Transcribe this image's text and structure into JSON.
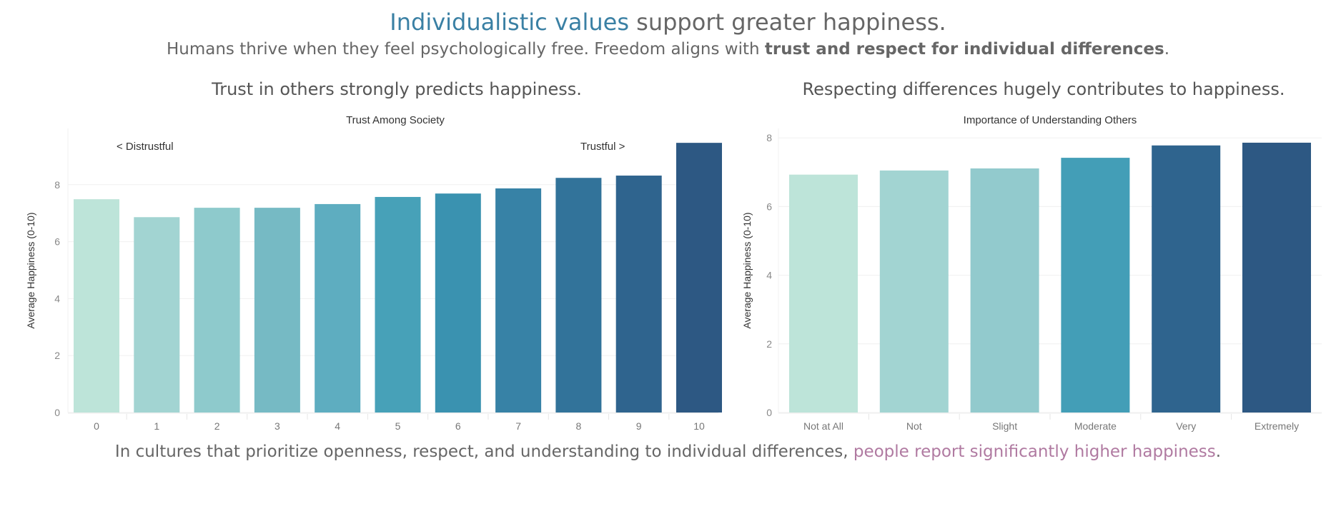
{
  "header": {
    "title_highlight": "Individualistic values",
    "title_rest": " support greater happiness.",
    "subtitle_pre": "Humans thrive when they feel psychologically free. Freedom aligns with ",
    "subtitle_bold": "trust and respect for individual differences",
    "subtitle_post": "."
  },
  "panels": {
    "left_heading": "Trust in others strongly predicts happiness.",
    "right_heading": "Respecting differences hugely contributes to happiness."
  },
  "footer": {
    "pre": "In cultures that prioritize openness, respect, and understanding to individual differences, ",
    "highlight": "people report significantly higher happiness",
    "post": "."
  },
  "colors": {
    "title_accent": "#3a80a4",
    "footer_accent": "#b07aa1",
    "text": "#666666"
  },
  "chart_data": [
    {
      "type": "bar",
      "title": "Trust Among Society",
      "xlabel": "",
      "ylabel": "Average Happiness (0-10)",
      "categories": [
        "0",
        "1",
        "2",
        "3",
        "4",
        "5",
        "6",
        "7",
        "8",
        "9",
        "10"
      ],
      "values": [
        7.49,
        6.86,
        7.19,
        7.19,
        7.32,
        7.57,
        7.69,
        7.87,
        8.24,
        8.32,
        9.47
      ],
      "colors": [
        "#bde4d9",
        "#a2d4d2",
        "#8ecacc",
        "#76bac4",
        "#5eadc0",
        "#47a1b8",
        "#3a92b0",
        "#3782a6",
        "#32739a",
        "#2f648e",
        "#2d5883"
      ],
      "ylim": [
        0,
        9.6
      ],
      "yticks": [
        0,
        2,
        4,
        6,
        8
      ],
      "grid": true,
      "annotations": [
        "< Distrustful",
        "Trustful >"
      ]
    },
    {
      "type": "bar",
      "title": "Importance of Understanding Others",
      "xlabel": "",
      "ylabel": "Average Happiness (0-10)",
      "categories": [
        "Not at All",
        "Not",
        "Slight",
        "Moderate",
        "Very",
        "Extremely"
      ],
      "values": [
        6.93,
        7.05,
        7.11,
        7.42,
        7.78,
        7.86
      ],
      "colors": [
        "#bde4d9",
        "#a2d4d2",
        "#92cacd",
        "#439eb7",
        "#2f648e",
        "#2d5883"
      ],
      "ylim": [
        0,
        8
      ],
      "yticks": [
        0,
        2,
        4,
        6,
        8
      ],
      "grid": true
    }
  ]
}
